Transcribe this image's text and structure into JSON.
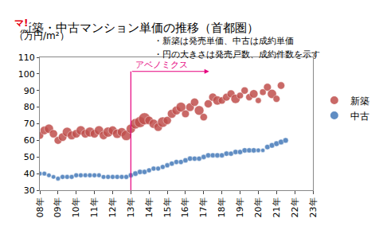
{
  "chart_data": {
    "type": "scatter",
    "marker": "bubble",
    "title": "新築・中古マンション単価の推移（首都圏）",
    "y_label": "（万円/m²）",
    "logo": "マ!",
    "notes": [
      "・新築は発売単価、中古は成約単価",
      "・円の大きさは発売戸数、成約件数を示す"
    ],
    "annotations": [
      {
        "text": "アベノミクス",
        "x": 2013,
        "x_end": 2017.3,
        "y": 101.5,
        "color": "#e6007e"
      }
    ],
    "xlim": [
      2008,
      2023
    ],
    "xticks": [
      {
        "value": 2008,
        "label": "08年"
      },
      {
        "value": 2009,
        "label": "09年"
      },
      {
        "value": 2010,
        "label": "10年"
      },
      {
        "value": 2011,
        "label": "11年"
      },
      {
        "value": 2012,
        "label": "12年"
      },
      {
        "value": 2013,
        "label": "13年"
      },
      {
        "value": 2014,
        "label": "14年"
      },
      {
        "value": 2015,
        "label": "15年"
      },
      {
        "value": 2016,
        "label": "16年"
      },
      {
        "value": 2017,
        "label": "17年"
      },
      {
        "value": 2018,
        "label": "18年"
      },
      {
        "value": 2019,
        "label": "19年"
      },
      {
        "value": 2020,
        "label": "20年"
      },
      {
        "value": 2021,
        "label": "21年"
      },
      {
        "value": 2022,
        "label": "22年"
      },
      {
        "value": 2023,
        "label": "23年"
      }
    ],
    "ylim": [
      30,
      110
    ],
    "yticks": [
      30,
      40,
      50,
      60,
      70,
      80,
      90,
      100,
      110
    ],
    "grid": false,
    "legend": "right",
    "series": [
      {
        "name": "新築",
        "color": "#c0504d",
        "x": [
          2008,
          2008.25,
          2008.5,
          2008.75,
          2009,
          2009.25,
          2009.5,
          2009.75,
          2010,
          2010.25,
          2010.5,
          2010.75,
          2011,
          2011.25,
          2011.5,
          2011.75,
          2012,
          2012.25,
          2012.5,
          2012.75,
          2013,
          2013.25,
          2013.5,
          2013.75,
          2014,
          2014.25,
          2014.5,
          2014.75,
          2015,
          2015.25,
          2015.5,
          2015.75,
          2016,
          2016.25,
          2016.5,
          2016.75,
          2017,
          2017.25,
          2017.5,
          2017.75,
          2018,
          2018.25,
          2018.5,
          2018.75,
          2019,
          2019.25,
          2019.5,
          2019.75,
          2020,
          2020.25,
          2020.5,
          2020.75,
          2021,
          2021.25
        ],
        "values": [
          63,
          66,
          67,
          64,
          60,
          62,
          65,
          63,
          64,
          66,
          64,
          65,
          64,
          66,
          63,
          65,
          66,
          64,
          65,
          63,
          67,
          70,
          71,
          73,
          72,
          70,
          68,
          71,
          72,
          76,
          78,
          80,
          76,
          80,
          83,
          78,
          74,
          82,
          86,
          84,
          84,
          86,
          88,
          85,
          87,
          90,
          86,
          88,
          84,
          89,
          92,
          88,
          85,
          93
        ],
        "sizes": [
          2500,
          3000,
          3500,
          2800,
          2500,
          3000,
          3800,
          3200,
          3000,
          3500,
          3000,
          4000,
          3000,
          3500,
          3000,
          4200,
          3200,
          3600,
          3300,
          4500,
          3500,
          4500,
          5000,
          6000,
          3000,
          3500,
          3000,
          4500,
          2800,
          3300,
          3200,
          4000,
          2500,
          3000,
          2800,
          3800,
          2300,
          2700,
          2800,
          3500,
          2200,
          2500,
          2600,
          3600,
          1800,
          2200,
          2000,
          3000,
          1500,
          1800,
          2500,
          3500,
          2000,
          2300
        ]
      },
      {
        "name": "中古",
        "color": "#4f81bd",
        "x": [
          2008,
          2008.25,
          2008.5,
          2008.75,
          2009,
          2009.25,
          2009.5,
          2009.75,
          2010,
          2010.25,
          2010.5,
          2010.75,
          2011,
          2011.25,
          2011.5,
          2011.75,
          2012,
          2012.25,
          2012.5,
          2012.75,
          2013,
          2013.25,
          2013.5,
          2013.75,
          2014,
          2014.25,
          2014.5,
          2014.75,
          2015,
          2015.25,
          2015.5,
          2015.75,
          2016,
          2016.25,
          2016.5,
          2016.75,
          2017,
          2017.25,
          2017.5,
          2017.75,
          2018,
          2018.25,
          2018.5,
          2018.75,
          2019,
          2019.25,
          2019.5,
          2019.75,
          2020,
          2020.25,
          2020.5,
          2020.75,
          2021,
          2021.25,
          2021.5
        ],
        "values": [
          40,
          40,
          39,
          38,
          37,
          38,
          38,
          38,
          39,
          39,
          39,
          39,
          39,
          39,
          38,
          38,
          38,
          38,
          38,
          38,
          39,
          40,
          41,
          41,
          42,
          43,
          43,
          44,
          45,
          46,
          47,
          47,
          48,
          49,
          49,
          49,
          50,
          51,
          51,
          51,
          51,
          52,
          52,
          53,
          53,
          54,
          54,
          54,
          54,
          54,
          56,
          57,
          58,
          59,
          60
        ],
        "sizes": [
          2500,
          2600,
          2500,
          2400,
          2600,
          2900,
          2800,
          2800,
          2900,
          2800,
          2700,
          2800,
          2800,
          2600,
          2700,
          2800,
          2800,
          2900,
          2800,
          3000,
          3200,
          3500,
          3400,
          3300,
          3000,
          3000,
          2900,
          3000,
          3100,
          3200,
          3100,
          3100,
          3300,
          3300,
          3200,
          3200,
          3300,
          3300,
          3200,
          3300,
          3200,
          3300,
          3200,
          3300,
          3300,
          3400,
          3300,
          3400,
          2500,
          2200,
          3500,
          3700,
          3800,
          3900,
          3800
        ]
      }
    ]
  }
}
